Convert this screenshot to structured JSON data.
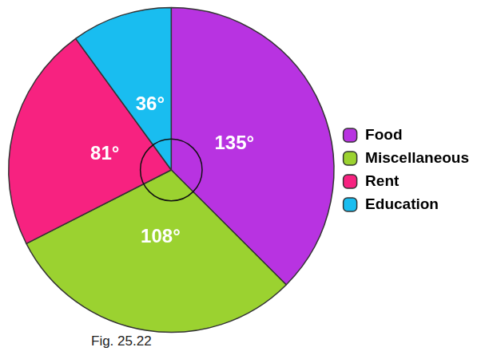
{
  "chart_data": {
    "type": "pie",
    "caption": "Fig. 25.22",
    "categories": [
      "Food",
      "Miscellaneous",
      "Rent",
      "Education"
    ],
    "values": [
      135,
      108,
      81,
      36
    ],
    "value_labels": [
      "135°",
      "108°",
      "81°",
      "36°"
    ],
    "colors": [
      "#b833e1",
      "#9bd230",
      "#f72280",
      "#19bdf0"
    ],
    "data_labels": true,
    "legend": "right"
  }
}
